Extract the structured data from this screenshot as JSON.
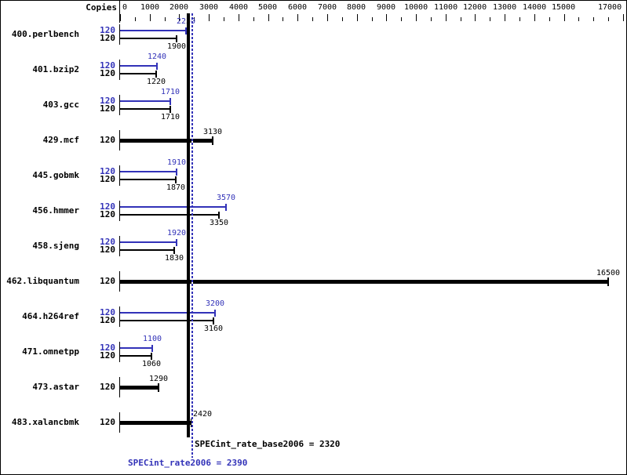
{
  "colors": {
    "rate_blue": "#3232b8",
    "base_black": "#000000",
    "background": "#ffffff"
  },
  "header": {
    "copies_label": "Copies"
  },
  "axis": {
    "min": 0,
    "max": 17000,
    "minor_step": 500,
    "tick_labels": [
      {
        "value": 0,
        "label": "0"
      },
      {
        "value": 1000,
        "label": "1000"
      },
      {
        "value": 2000,
        "label": "2000"
      },
      {
        "value": 3000,
        "label": "3000"
      },
      {
        "value": 4000,
        "label": "4000"
      },
      {
        "value": 5000,
        "label": "5000"
      },
      {
        "value": 6000,
        "label": "6000"
      },
      {
        "value": 7000,
        "label": "7000"
      },
      {
        "value": 8000,
        "label": "8000"
      },
      {
        "value": 9000,
        "label": "9000"
      },
      {
        "value": 10000,
        "label": "10000"
      },
      {
        "value": 11000,
        "label": "11000"
      },
      {
        "value": 12000,
        "label": "12000"
      },
      {
        "value": 13000,
        "label": "13000"
      },
      {
        "value": 14000,
        "label": "14000"
      },
      {
        "value": 15000,
        "label": "15000"
      },
      {
        "value": 17000,
        "label": "17000"
      }
    ]
  },
  "chart_data": {
    "type": "bar",
    "orientation": "horizontal",
    "xlim": [
      0,
      17000
    ],
    "copies_column_header": "Copies",
    "benchmarks": [
      {
        "name": "400.perlbench",
        "bars": [
          {
            "kind": "rate",
            "copies": "120",
            "value": 2230
          },
          {
            "kind": "base",
            "copies": "120",
            "value": 1900
          }
        ]
      },
      {
        "name": "401.bzip2",
        "bars": [
          {
            "kind": "rate",
            "copies": "120",
            "value": 1240
          },
          {
            "kind": "base",
            "copies": "120",
            "value": 1220
          }
        ]
      },
      {
        "name": "403.gcc",
        "bars": [
          {
            "kind": "rate",
            "copies": "120",
            "value": 1710
          },
          {
            "kind": "base",
            "copies": "120",
            "value": 1710
          }
        ]
      },
      {
        "name": "429.mcf",
        "bars": [
          {
            "kind": "basepeak",
            "copies": "120",
            "value": 3130
          }
        ]
      },
      {
        "name": "445.gobmk",
        "bars": [
          {
            "kind": "rate",
            "copies": "120",
            "value": 1910
          },
          {
            "kind": "base",
            "copies": "120",
            "value": 1870
          }
        ]
      },
      {
        "name": "456.hmmer",
        "bars": [
          {
            "kind": "rate",
            "copies": "120",
            "value": 3570
          },
          {
            "kind": "base",
            "copies": "120",
            "value": 3350
          }
        ]
      },
      {
        "name": "458.sjeng",
        "bars": [
          {
            "kind": "rate",
            "copies": "120",
            "value": 1920
          },
          {
            "kind": "base",
            "copies": "120",
            "value": 1830
          }
        ]
      },
      {
        "name": "462.libquantum",
        "bars": [
          {
            "kind": "basepeak",
            "copies": "120",
            "value": 16500
          }
        ]
      },
      {
        "name": "464.h264ref",
        "bars": [
          {
            "kind": "rate",
            "copies": "120",
            "value": 3200
          },
          {
            "kind": "base",
            "copies": "120",
            "value": 3160
          }
        ]
      },
      {
        "name": "471.omnetpp",
        "bars": [
          {
            "kind": "rate",
            "copies": "120",
            "value": 1100
          },
          {
            "kind": "base",
            "copies": "120",
            "value": 1060
          }
        ]
      },
      {
        "name": "473.astar",
        "bars": [
          {
            "kind": "basepeak",
            "copies": "120",
            "value": 1290
          }
        ]
      },
      {
        "name": "483.xalancbmk",
        "bars": [
          {
            "kind": "basepeak",
            "copies": "120",
            "value": 2420
          }
        ]
      }
    ],
    "summary": {
      "base": {
        "label": "SPECint_rate_base2006",
        "value": 2320,
        "text": "SPECint_rate_base2006 = 2320"
      },
      "rate": {
        "label": "SPECint_rate2006",
        "value": 2390,
        "text": "SPECint_rate2006 = 2390"
      }
    }
  }
}
